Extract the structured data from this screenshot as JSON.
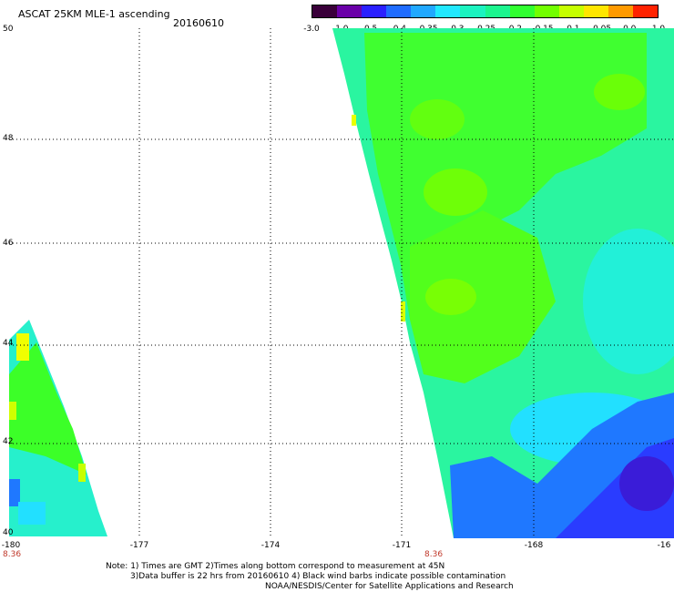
{
  "header": {
    "title": "ASCAT 25KM MLE-1 ascending",
    "date": "20160610"
  },
  "colorbar": {
    "colors": [
      "#3a003a",
      "#6a00a8",
      "#2a20ff",
      "#1f6cff",
      "#21a8ff",
      "#22e8ff",
      "#1cf3c0",
      "#1cf58f",
      "#30ff30",
      "#72ff00",
      "#c6ff00",
      "#ffe600",
      "#ff9a00",
      "#ff2200"
    ],
    "labels": [
      "-3.0",
      "-1.0",
      "-0.5",
      "-0.4",
      "-0.35",
      "-0.3",
      "-0.25",
      "-0.2",
      "-0.15",
      "-0.1",
      "-0.05",
      "0.0",
      "1.0"
    ]
  },
  "axes": {
    "lat_labels": [
      "50",
      "48",
      "46",
      "44",
      "42",
      "40"
    ],
    "lon_labels": [
      "-180",
      "-177",
      "-174",
      "-171",
      "-168",
      "-16"
    ],
    "orbit_labels": [
      "8.36",
      "8.36"
    ]
  },
  "notes": {
    "line1": "Note: 1) Times are GMT 2)Times along bottom correspond to measurement at 45N",
    "line2": "3)Data buffer is 22 hrs from 20160610 4) Black wind barbs indicate possible contamination",
    "line3": "NOAA/NESDIS/Center for Satellite Applications and Research"
  }
}
